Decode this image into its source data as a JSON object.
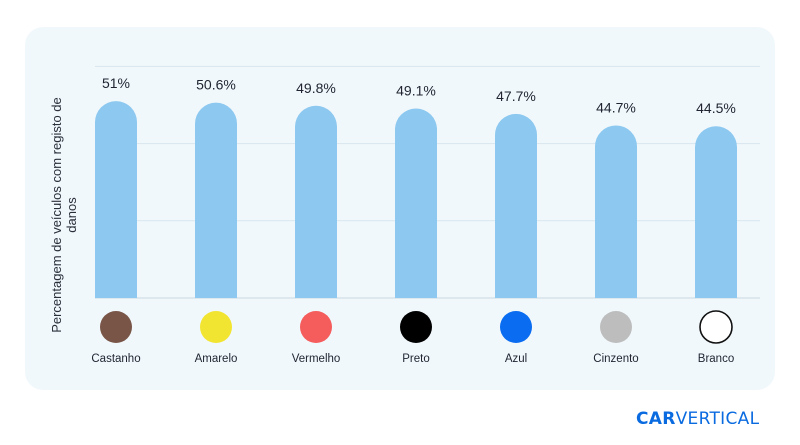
{
  "chart_data": {
    "type": "bar",
    "ylabel": "Percentagem de veículos com registo de danos",
    "categories": [
      "Castanho",
      "Amarelo",
      "Vermelho",
      "Preto",
      "Azul",
      "Cinzento",
      "Branco"
    ],
    "values": [
      51,
      50.6,
      49.8,
      49.1,
      47.7,
      44.7,
      44.5
    ],
    "value_labels": [
      "51%",
      "50.6%",
      "49.8%",
      "49.1%",
      "47.7%",
      "44.7%",
      "44.5%"
    ],
    "swatch_colors": [
      "#795548",
      "#f2e531",
      "#f55c5c",
      "#000000",
      "#0a6cf0",
      "#bdbdbd",
      "#ffffff"
    ],
    "bar_color": "#8cc8ef",
    "grid": true,
    "ylim": [
      0,
      60
    ]
  },
  "brand": {
    "logo_part1": "CAR",
    "logo_part2": "VERTICAL",
    "color": "#0a6be0"
  }
}
